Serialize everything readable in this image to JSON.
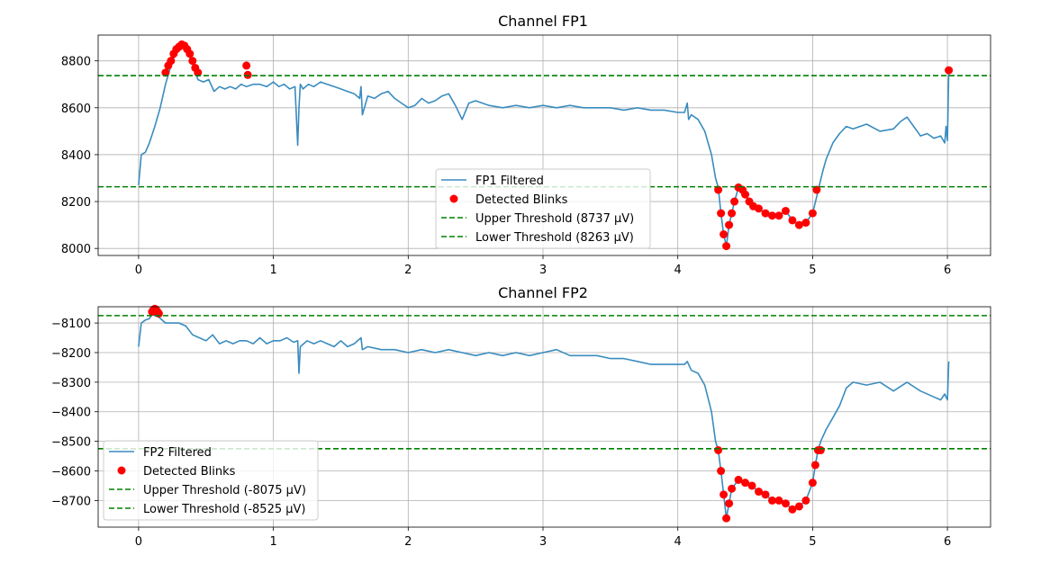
{
  "colors": {
    "signal": "#3a8cbf",
    "blink": "#ff0000",
    "threshold": "#008000",
    "grid": "#b0b0b0",
    "axis": "#000000"
  },
  "chart_data": [
    {
      "type": "line",
      "title": "Channel FP1",
      "xlabel": "",
      "ylabel": "",
      "xlim": [
        -0.3,
        6.32
      ],
      "ylim": [
        7970,
        8910
      ],
      "xticks": [
        0,
        1,
        2,
        3,
        4,
        5,
        6
      ],
      "yticks": [
        8000,
        8200,
        8400,
        8600,
        8800
      ],
      "grid": true,
      "legend_position": "lower-center",
      "series": [
        {
          "name": "FP1 Filtered",
          "kind": "line",
          "x": [
            0,
            0.02,
            0.05,
            0.08,
            0.12,
            0.16,
            0.2,
            0.24,
            0.28,
            0.32,
            0.36,
            0.4,
            0.44,
            0.48,
            0.52,
            0.56,
            0.6,
            0.64,
            0.68,
            0.72,
            0.76,
            0.8,
            0.85,
            0.9,
            0.95,
            1.0,
            1.04,
            1.08,
            1.12,
            1.16,
            1.18,
            1.19,
            1.2,
            1.22,
            1.26,
            1.3,
            1.35,
            1.4,
            1.45,
            1.5,
            1.55,
            1.6,
            1.64,
            1.65,
            1.66,
            1.7,
            1.75,
            1.8,
            1.85,
            1.9,
            1.95,
            2.0,
            2.05,
            2.1,
            2.15,
            2.2,
            2.25,
            2.3,
            2.35,
            2.4,
            2.45,
            2.5,
            2.55,
            2.6,
            2.7,
            2.8,
            2.9,
            3.0,
            3.1,
            3.2,
            3.3,
            3.4,
            3.5,
            3.6,
            3.7,
            3.8,
            3.9,
            4.0,
            4.05,
            4.07,
            4.08,
            4.1,
            4.15,
            4.2,
            4.25,
            4.28,
            4.3,
            4.32,
            4.34,
            4.36,
            4.38,
            4.4,
            4.42,
            4.45,
            4.48,
            4.5,
            4.53,
            4.56,
            4.6,
            4.65,
            4.7,
            4.75,
            4.8,
            4.85,
            4.9,
            4.95,
            5.0,
            5.03,
            5.05,
            5.08,
            5.1,
            5.15,
            5.2,
            5.25,
            5.3,
            5.4,
            5.5,
            5.6,
            5.65,
            5.7,
            5.75,
            5.8,
            5.85,
            5.9,
            5.95,
            5.98,
            5.99,
            6.0,
            6.01
          ],
          "y": [
            8270,
            8400,
            8410,
            8450,
            8520,
            8600,
            8700,
            8780,
            8840,
            8870,
            8850,
            8790,
            8720,
            8710,
            8720,
            8670,
            8690,
            8680,
            8690,
            8680,
            8700,
            8690,
            8700,
            8700,
            8690,
            8710,
            8690,
            8700,
            8680,
            8690,
            8440,
            8600,
            8700,
            8680,
            8700,
            8690,
            8710,
            8700,
            8690,
            8680,
            8670,
            8660,
            8640,
            8690,
            8570,
            8650,
            8640,
            8660,
            8670,
            8640,
            8620,
            8600,
            8610,
            8640,
            8620,
            8630,
            8650,
            8660,
            8610,
            8550,
            8620,
            8630,
            8620,
            8610,
            8600,
            8610,
            8600,
            8610,
            8600,
            8610,
            8600,
            8600,
            8600,
            8590,
            8600,
            8590,
            8590,
            8580,
            8580,
            8620,
            8550,
            8570,
            8550,
            8500,
            8400,
            8300,
            8260,
            8150,
            8060,
            8010,
            8100,
            8150,
            8200,
            8260,
            8250,
            8230,
            8200,
            8180,
            8170,
            8150,
            8140,
            8140,
            8160,
            8120,
            8100,
            8110,
            8150,
            8220,
            8270,
            8340,
            8380,
            8450,
            8490,
            8520,
            8510,
            8530,
            8500,
            8510,
            8540,
            8560,
            8520,
            8480,
            8490,
            8470,
            8480,
            8450,
            8520,
            8460,
            8760
          ]
        },
        {
          "name": "Detected Blinks",
          "kind": "scatter",
          "x": [
            0.2,
            0.22,
            0.24,
            0.26,
            0.28,
            0.3,
            0.32,
            0.34,
            0.36,
            0.38,
            0.4,
            0.42,
            0.44,
            0.8,
            0.81,
            4.3,
            4.32,
            4.34,
            4.36,
            4.38,
            4.4,
            4.42,
            4.45,
            4.48,
            4.5,
            4.53,
            4.56,
            4.6,
            4.65,
            4.7,
            4.75,
            4.8,
            4.85,
            4.9,
            4.95,
            5.0,
            5.03,
            6.01
          ],
          "y": [
            8750,
            8780,
            8800,
            8830,
            8850,
            8860,
            8870,
            8865,
            8850,
            8830,
            8800,
            8770,
            8750,
            8780,
            8740,
            8250,
            8150,
            8060,
            8010,
            8100,
            8150,
            8200,
            8260,
            8250,
            8230,
            8200,
            8180,
            8170,
            8150,
            8140,
            8140,
            8160,
            8120,
            8100,
            8110,
            8150,
            8250,
            8760
          ]
        },
        {
          "name": "Upper Threshold (8737 µV)",
          "kind": "hline",
          "value": 8737
        },
        {
          "name": "Lower Threshold (8263 µV)",
          "kind": "hline",
          "value": 8263
        }
      ]
    },
    {
      "type": "line",
      "title": "Channel FP2",
      "xlabel": "",
      "ylabel": "",
      "xlim": [
        -0.3,
        6.32
      ],
      "ylim": [
        -8790,
        -8045
      ],
      "xticks": [
        0,
        1,
        2,
        3,
        4,
        5,
        6
      ],
      "yticks": [
        -8100,
        -8200,
        -8300,
        -8400,
        -8500,
        -8600,
        -8700
      ],
      "grid": true,
      "legend_position": "lower-left",
      "series": [
        {
          "name": "FP2 Filtered",
          "kind": "line",
          "x": [
            0,
            0.02,
            0.05,
            0.08,
            0.1,
            0.12,
            0.15,
            0.2,
            0.25,
            0.3,
            0.35,
            0.4,
            0.45,
            0.5,
            0.55,
            0.6,
            0.65,
            0.7,
            0.75,
            0.8,
            0.85,
            0.9,
            0.95,
            1.0,
            1.05,
            1.1,
            1.15,
            1.18,
            1.19,
            1.2,
            1.25,
            1.3,
            1.35,
            1.4,
            1.45,
            1.5,
            1.55,
            1.6,
            1.65,
            1.66,
            1.7,
            1.8,
            1.9,
            2.0,
            2.1,
            2.2,
            2.3,
            2.4,
            2.5,
            2.6,
            2.7,
            2.8,
            2.9,
            3.0,
            3.1,
            3.2,
            3.3,
            3.4,
            3.5,
            3.6,
            3.7,
            3.8,
            3.9,
            4.0,
            4.05,
            4.07,
            4.1,
            4.15,
            4.2,
            4.25,
            4.28,
            4.3,
            4.32,
            4.34,
            4.36,
            4.38,
            4.4,
            4.45,
            4.5,
            4.55,
            4.6,
            4.65,
            4.7,
            4.75,
            4.8,
            4.85,
            4.9,
            4.95,
            5.0,
            5.02,
            5.04,
            5.06,
            5.1,
            5.15,
            5.2,
            5.25,
            5.3,
            5.4,
            5.5,
            5.6,
            5.7,
            5.8,
            5.9,
            5.95,
            5.98,
            6.0,
            6.01
          ],
          "y": [
            -8180,
            -8100,
            -8090,
            -8085,
            -8070,
            -8075,
            -8080,
            -8100,
            -8100,
            -8100,
            -8110,
            -8140,
            -8150,
            -8160,
            -8140,
            -8170,
            -8160,
            -8170,
            -8160,
            -8160,
            -8170,
            -8150,
            -8170,
            -8160,
            -8160,
            -8150,
            -8165,
            -8160,
            -8270,
            -8180,
            -8160,
            -8170,
            -8160,
            -8170,
            -8180,
            -8160,
            -8180,
            -8170,
            -8150,
            -8190,
            -8180,
            -8190,
            -8190,
            -8200,
            -8190,
            -8200,
            -8190,
            -8200,
            -8210,
            -8200,
            -8210,
            -8200,
            -8210,
            -8200,
            -8190,
            -8210,
            -8210,
            -8210,
            -8220,
            -8220,
            -8230,
            -8240,
            -8240,
            -8240,
            -8240,
            -8230,
            -8260,
            -8270,
            -8310,
            -8400,
            -8500,
            -8530,
            -8600,
            -8680,
            -8760,
            -8710,
            -8660,
            -8630,
            -8640,
            -8650,
            -8670,
            -8680,
            -8700,
            -8700,
            -8710,
            -8730,
            -8720,
            -8700,
            -8640,
            -8580,
            -8530,
            -8500,
            -8460,
            -8420,
            -8380,
            -8320,
            -8300,
            -8310,
            -8300,
            -8330,
            -8300,
            -8330,
            -8350,
            -8360,
            -8340,
            -8360,
            -8230
          ]
        },
        {
          "name": "Detected Blinks",
          "kind": "scatter",
          "x": [
            0.1,
            0.11,
            0.12,
            0.13,
            0.14,
            0.15,
            4.3,
            4.32,
            4.34,
            4.36,
            4.38,
            4.4,
            4.45,
            4.5,
            4.55,
            4.6,
            4.65,
            4.7,
            4.75,
            4.8,
            4.85,
            4.9,
            4.95,
            5.0,
            5.02,
            5.04,
            5.06
          ],
          "y": [
            -8062,
            -8055,
            -8052,
            -8055,
            -8062,
            -8068,
            -8530,
            -8600,
            -8680,
            -8760,
            -8710,
            -8660,
            -8630,
            -8640,
            -8650,
            -8670,
            -8680,
            -8700,
            -8700,
            -8710,
            -8730,
            -8720,
            -8700,
            -8640,
            -8580,
            -8530,
            -8530
          ]
        },
        {
          "name": "Upper Threshold (-8075 µV)",
          "kind": "hline",
          "value": -8075
        },
        {
          "name": "Lower Threshold (-8525 µV)",
          "kind": "hline",
          "value": -8525
        }
      ]
    }
  ]
}
